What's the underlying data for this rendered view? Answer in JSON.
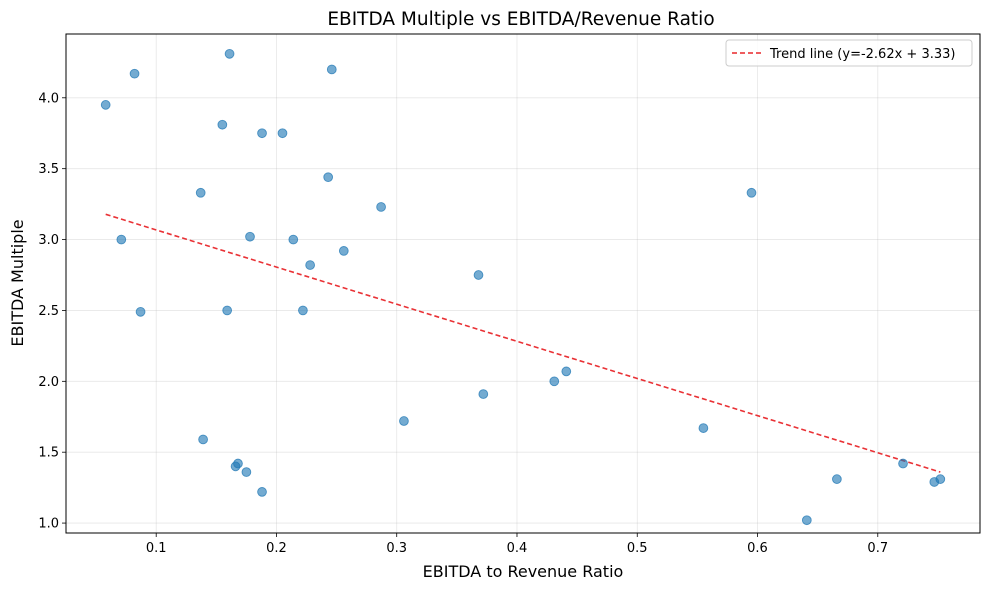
{
  "chart_data": {
    "type": "scatter",
    "title": "EBITDA Multiple vs EBITDA/Revenue Ratio",
    "xlabel": "EBITDA to Revenue Ratio",
    "ylabel": "EBITDA Multiple",
    "xlim": [
      0.025,
      0.785
    ],
    "ylim": [
      0.93,
      4.45
    ],
    "xticks": [
      0.1,
      0.2,
      0.3,
      0.4,
      0.5,
      0.6,
      0.7
    ],
    "xtick_labels": [
      "0.1",
      "0.2",
      "0.3",
      "0.4",
      "0.5",
      "0.6",
      "0.7"
    ],
    "yticks": [
      1.0,
      1.5,
      2.0,
      2.5,
      3.0,
      3.5,
      4.0
    ],
    "ytick_labels": [
      "1.0",
      "1.5",
      "2.0",
      "2.5",
      "3.0",
      "3.5",
      "4.0"
    ],
    "grid": true,
    "legend_position": "top-right",
    "point_color": "#1f77b4",
    "trend_color": "#e8262a",
    "series": [
      {
        "x": [
          0.058,
          0.071,
          0.082,
          0.087,
          0.137,
          0.139,
          0.155,
          0.159,
          0.161,
          0.166,
          0.168,
          0.175,
          0.178,
          0.188,
          0.188,
          0.205,
          0.214,
          0.222,
          0.228,
          0.243,
          0.246,
          0.256,
          0.287,
          0.306,
          0.368,
          0.372,
          0.431,
          0.441,
          0.555,
          0.595,
          0.641,
          0.666,
          0.721,
          0.747,
          0.752
        ],
        "y": [
          3.95,
          3.0,
          4.17,
          2.49,
          3.33,
          1.59,
          3.81,
          2.5,
          4.31,
          1.4,
          1.42,
          1.36,
          3.02,
          3.75,
          1.22,
          3.75,
          3.0,
          2.5,
          2.82,
          3.44,
          4.2,
          2.92,
          3.23,
          1.72,
          2.75,
          1.91,
          2.0,
          2.07,
          1.67,
          3.33,
          1.02,
          1.31,
          1.42,
          1.29,
          1.31
        ]
      }
    ],
    "trend": {
      "label": "Trend line (y=-2.62x + 3.33)",
      "slope": -2.62,
      "intercept": 3.33,
      "x_range": [
        0.058,
        0.752
      ]
    }
  }
}
